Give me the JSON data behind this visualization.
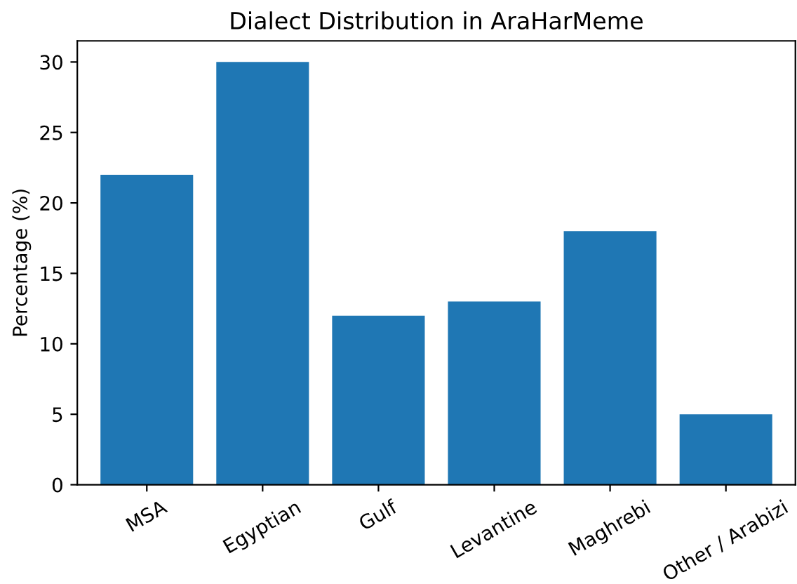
{
  "chart_data": {
    "type": "bar",
    "title": "Dialect Distribution in AraHarMeme",
    "ylabel": "Percentage (%)",
    "categories": [
      "MSA",
      "Egyptian",
      "Gulf",
      "Levantine",
      "Maghrebi",
      "Other / Arabizi"
    ],
    "values": [
      22,
      30,
      12,
      13,
      18,
      5
    ],
    "color": "#1f77b4",
    "ylim": [
      0,
      31.5
    ],
    "yticks": [
      0,
      5,
      10,
      15,
      20,
      25,
      30
    ],
    "grid": false,
    "legend": false
  }
}
